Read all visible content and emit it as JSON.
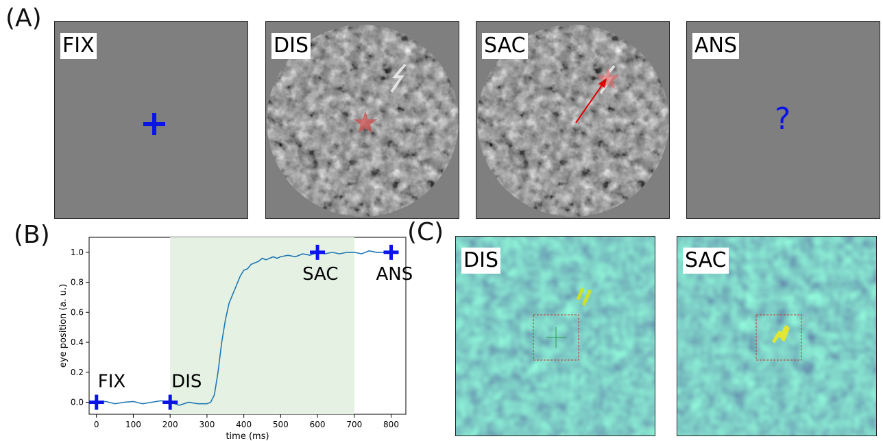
{
  "panel_letters": {
    "a": "(A)",
    "b": "(B)",
    "c": "(C)"
  },
  "stimulus_panels": [
    {
      "label": "FIX",
      "content": "fixation-cross"
    },
    {
      "label": "DIS",
      "content": "noise-with-target"
    },
    {
      "label": "SAC",
      "content": "noise-with-saccade"
    },
    {
      "label": "ANS",
      "content": "question-mark",
      "glyph": "?"
    }
  ],
  "heatmap_panels": [
    {
      "label": "DIS"
    },
    {
      "label": "SAC"
    }
  ],
  "colors": {
    "gray": "#7f7f7f",
    "cross": "#0a14e6",
    "target_star": "#cd4f4f",
    "saccade_arrow": "#e00000",
    "line": "#1f77b4",
    "shade": "#e4f1e3",
    "viridis_low": "#3b528b",
    "viridis_mid": "#21918c",
    "viridis_high": "#fde725"
  },
  "chart_data": {
    "type": "line",
    "xlabel": "time (ms)",
    "ylabel": "eye position (a. u.)",
    "xlim": [
      -20,
      840
    ],
    "ylim": [
      -0.08,
      1.1
    ],
    "xticks": [
      0,
      100,
      200,
      300,
      400,
      500,
      600,
      700,
      800
    ],
    "yticks": [
      0.0,
      0.2,
      0.4,
      0.6,
      0.8,
      1.0
    ],
    "xtick_labels": [
      "0",
      "100",
      "200",
      "300",
      "400",
      "500",
      "600",
      "700",
      "800"
    ],
    "ytick_labels": [
      "0.0",
      "0.2",
      "0.4",
      "0.6",
      "0.8",
      "1.0"
    ],
    "shaded_interval": [
      200,
      700
    ],
    "series": [
      {
        "x": [
          0,
          25,
          50,
          75,
          100,
          125,
          150,
          175,
          200,
          225,
          250,
          275,
          300,
          310,
          320,
          330,
          340,
          350,
          360,
          370,
          380,
          390,
          400,
          410,
          420,
          430,
          440,
          450,
          460,
          470,
          480,
          490,
          500,
          520,
          540,
          560,
          580,
          600,
          620,
          640,
          660,
          680,
          700,
          720,
          740,
          760,
          780,
          800
        ],
        "y": [
          0.0,
          0.005,
          -0.01,
          0.0,
          0.005,
          -0.01,
          0.0,
          0.01,
          0.0,
          -0.02,
          0.0,
          -0.01,
          -0.01,
          0.0,
          0.05,
          0.2,
          0.4,
          0.55,
          0.66,
          0.72,
          0.78,
          0.84,
          0.88,
          0.89,
          0.92,
          0.93,
          0.94,
          0.96,
          0.95,
          0.96,
          0.97,
          0.96,
          0.97,
          0.98,
          0.97,
          0.99,
          0.98,
          1.0,
          0.99,
          1.0,
          0.99,
          1.0,
          1.0,
          0.99,
          1.01,
          1.0,
          1.0,
          1.0
        ]
      }
    ],
    "markers": [
      {
        "x": 0,
        "y": 0.0,
        "label": "FIX"
      },
      {
        "x": 200,
        "y": 0.0,
        "label": "DIS"
      },
      {
        "x": 600,
        "y": 1.0,
        "label": "SAC"
      },
      {
        "x": 800,
        "y": 1.0,
        "label": "ANS"
      }
    ]
  }
}
